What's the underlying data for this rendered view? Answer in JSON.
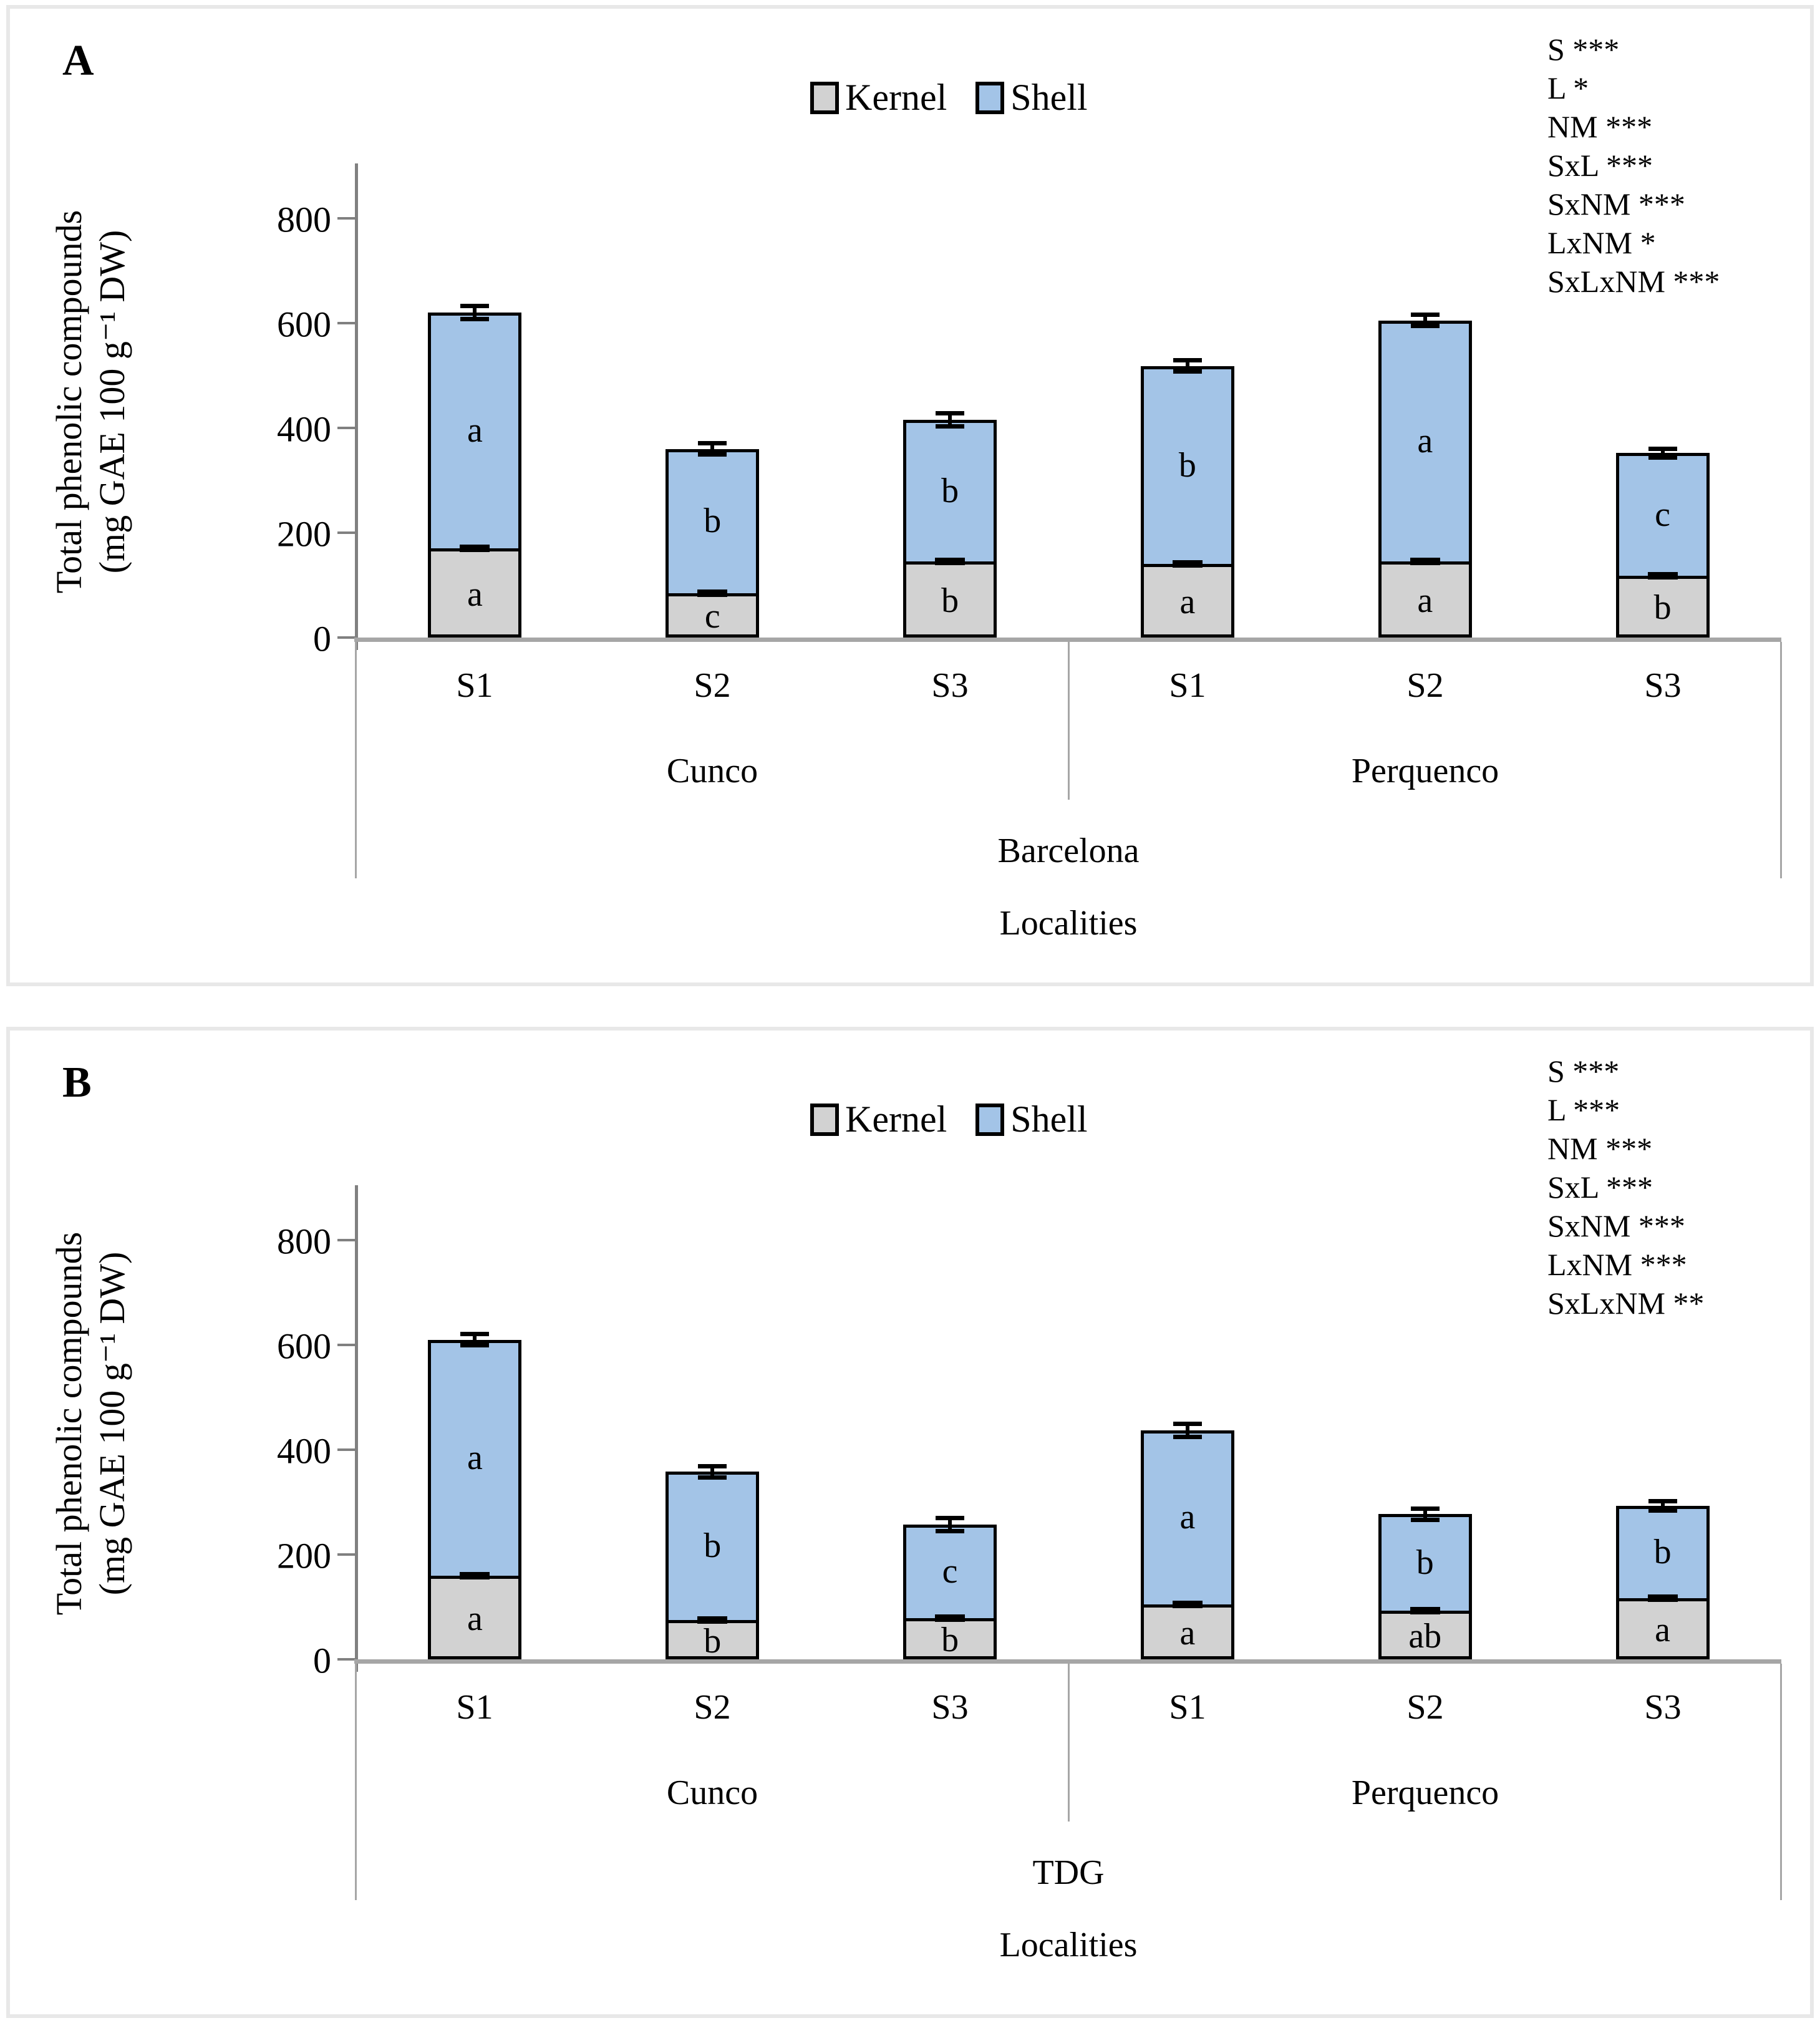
{
  "figure": {
    "y_axis_title_line1": "Total phenolic compounds",
    "y_axis_title_line2": "(mg GAE 100 g⁻¹ DW)",
    "x_axis_title": "Localities",
    "legend": [
      {
        "label": "Kernel",
        "color": "#D2D2D2"
      },
      {
        "label": "Shell",
        "color": "#A3C4E7"
      }
    ],
    "colors": {
      "kernel": "#D2D2D2",
      "shell": "#A3C4E7",
      "bar_border": "#000000",
      "axis_line": "#808080",
      "baseline": "#A6A6A6",
      "category_line": "#A6A6A6",
      "panel_border": "#E8E8E8"
    }
  },
  "chart_data": [
    {
      "type": "bar",
      "stacked": true,
      "panel_letter": "A",
      "title": "",
      "ylabel": "Total phenolic compounds (mg GAE 100 g⁻¹ DW)",
      "xlabel": "Localities",
      "ylim": [
        0,
        900
      ],
      "yticks": [
        0,
        200,
        400,
        600,
        800
      ],
      "grid": false,
      "legend_position": "top-center",
      "region": "Barcelona",
      "groups": [
        {
          "label": "Cunco"
        },
        {
          "label": "Perquenco"
        }
      ],
      "categories": [
        "S1",
        "S2",
        "S3",
        "S1",
        "S2",
        "S3"
      ],
      "series": [
        {
          "name": "Kernel",
          "values": [
            170,
            85,
            145,
            140,
            145,
            118
          ]
        },
        {
          "name": "Shell",
          "values": [
            450,
            275,
            270,
            378,
            460,
            234
          ]
        }
      ],
      "totals": [
        620,
        360,
        415,
        518,
        605,
        352
      ],
      "total_error": [
        12,
        10,
        12,
        10,
        10,
        8
      ],
      "kernel_error": [
        6,
        6,
        5,
        5,
        6,
        5
      ],
      "kernel_letters": [
        "a",
        "c",
        "b",
        "a",
        "a",
        "b"
      ],
      "shell_letters": [
        "a",
        "b",
        "b",
        "b",
        "a",
        "c"
      ],
      "stats_lines": [
        "S ***",
        "L *",
        "NM ***",
        "SxL ***",
        "SxNM ***",
        "LxNM *",
        "SxLxNM ***"
      ]
    },
    {
      "type": "bar",
      "stacked": true,
      "panel_letter": "B",
      "title": "",
      "ylabel": "Total phenolic compounds (mg GAE 100 g⁻¹ DW)",
      "xlabel": "Localities",
      "ylim": [
        0,
        900
      ],
      "yticks": [
        0,
        200,
        400,
        600,
        800
      ],
      "grid": false,
      "legend_position": "top-center",
      "region": "TDG",
      "groups": [
        {
          "label": "Cunco"
        },
        {
          "label": "Perquenco"
        }
      ],
      "categories": [
        "S1",
        "S2",
        "S3",
        "S1",
        "S2",
        "S3"
      ],
      "series": [
        {
          "name": "Kernel",
          "values": [
            160,
            75,
            78,
            105,
            93,
            117
          ]
        },
        {
          "name": "Shell",
          "values": [
            450,
            283,
            179,
            332,
            184,
            176
          ]
        }
      ],
      "totals": [
        610,
        358,
        257,
        437,
        277,
        293
      ],
      "total_error": [
        10,
        10,
        12,
        12,
        10,
        8
      ],
      "kernel_error": [
        7,
        8,
        6,
        6,
        7,
        6
      ],
      "kernel_letters": [
        "a",
        "b",
        "b",
        "a",
        "ab",
        "a"
      ],
      "shell_letters": [
        "a",
        "b",
        "c",
        "a",
        "b",
        "b"
      ],
      "stats_lines": [
        "S ***",
        "L ***",
        "NM ***",
        "SxL ***",
        "SxNM ***",
        "LxNM ***",
        "SxLxNM **"
      ]
    }
  ]
}
